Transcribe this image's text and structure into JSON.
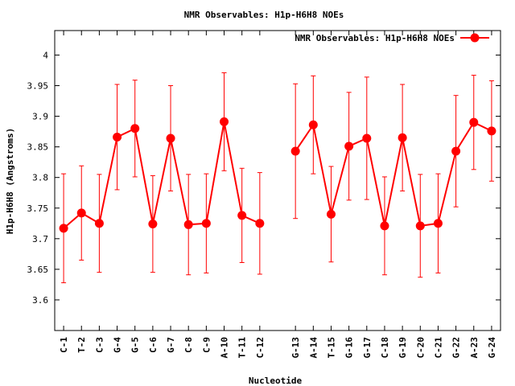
{
  "chart_data": {
    "type": "line",
    "title": "NMR Observables: H1p-H6H8 NOEs",
    "xlabel": "Nucleotide",
    "ylabel": "H1p-H6H8 (Angstroms)",
    "ylim": [
      3.55,
      4.04
    ],
    "yticks": [
      "3.6",
      "3.65",
      "3.7",
      "3.75",
      "3.8",
      "3.85",
      "3.9",
      "3.95",
      "4"
    ],
    "categories": [
      "C-1",
      "T-2",
      "C-3",
      "G-4",
      "G-5",
      "C-6",
      "G-7",
      "C-8",
      "C-9",
      "A-10",
      "T-11",
      "C-12",
      "G-13",
      "A-14",
      "T-15",
      "G-16",
      "G-17",
      "C-18",
      "G-19",
      "C-20",
      "C-21",
      "G-22",
      "A-23",
      "G-24"
    ],
    "legend": "top-right",
    "grid": false,
    "color": "#ff0000",
    "series": [
      {
        "name": "NMR Observables: H1p-H6H8 NOEs",
        "segments": [
          {
            "x": [
              1,
              2,
              3,
              4,
              5,
              6,
              7,
              8,
              9,
              10,
              11,
              12
            ],
            "y": [
              3.717,
              3.742,
              3.725,
              3.866,
              3.88,
              3.724,
              3.864,
              3.723,
              3.725,
              3.891,
              3.738,
              3.725
            ],
            "yerr": [
              0.089,
              0.077,
              0.08,
              0.086,
              0.079,
              0.079,
              0.086,
              0.082,
              0.081,
              0.08,
              0.077,
              0.083
            ]
          },
          {
            "x": [
              14,
              15,
              16,
              17,
              18,
              19,
              20,
              21,
              22,
              23,
              24,
              25
            ],
            "y": [
              3.843,
              3.886,
              3.74,
              3.851,
              3.864,
              3.721,
              3.865,
              3.721,
              3.725,
              3.843,
              3.89,
              3.876
            ],
            "yerr": [
              0.11,
              0.08,
              0.078,
              0.088,
              0.1,
              0.08,
              0.087,
              0.084,
              0.081,
              0.091,
              0.077,
              0.082
            ]
          }
        ]
      }
    ]
  }
}
